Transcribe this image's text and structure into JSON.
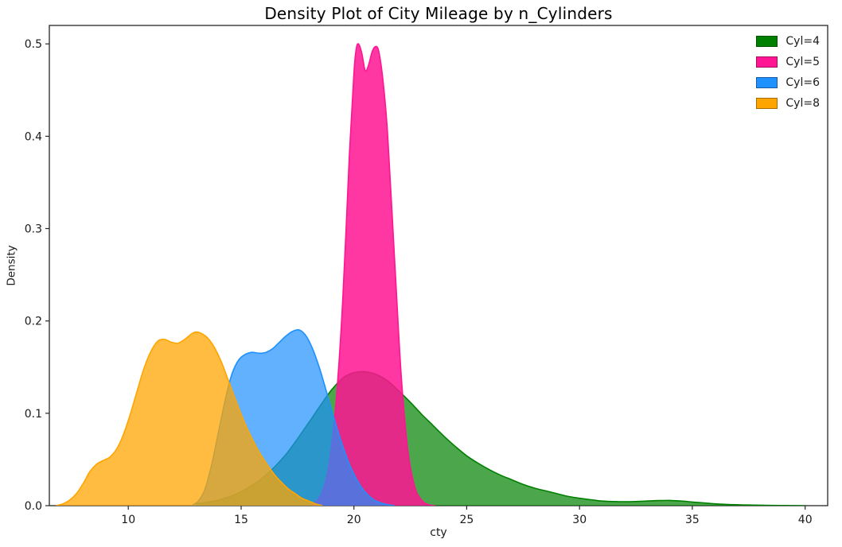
{
  "chart_data": {
    "type": "area",
    "kind": "kde-density",
    "title": "Density Plot of City Mileage by n_Cylinders",
    "xlabel": "cty",
    "ylabel": "Density",
    "xlim": [
      6.5,
      41
    ],
    "ylim": [
      0,
      0.52
    ],
    "xticks": [
      10,
      15,
      20,
      25,
      30,
      35,
      40
    ],
    "xtick_labels": [
      "10",
      "15",
      "20",
      "25",
      "30",
      "35",
      "40"
    ],
    "yticks": [
      0,
      0.1,
      0.2,
      0.3,
      0.4,
      0.5
    ],
    "ytick_labels": [
      "0.0",
      "0.1",
      "0.2",
      "0.3",
      "0.4",
      "0.5"
    ],
    "grid": false,
    "legend_position": "upper-right",
    "frame_color": "#262626",
    "series": [
      {
        "name": "Cyl=4",
        "color": "#008000",
        "fill_alpha": 0.7,
        "points": [
          [
            13,
            0.002
          ],
          [
            14,
            0.006
          ],
          [
            15,
            0.015
          ],
          [
            16,
            0.031
          ],
          [
            17,
            0.056
          ],
          [
            18,
            0.09
          ],
          [
            18.5,
            0.108
          ],
          [
            19,
            0.125
          ],
          [
            19.5,
            0.138
          ],
          [
            20,
            0.144
          ],
          [
            20.5,
            0.145
          ],
          [
            21,
            0.142
          ],
          [
            21.5,
            0.135
          ],
          [
            22,
            0.124
          ],
          [
            22.5,
            0.112
          ],
          [
            23,
            0.099
          ],
          [
            23.5,
            0.087
          ],
          [
            24,
            0.075
          ],
          [
            24.5,
            0.064
          ],
          [
            25,
            0.054
          ],
          [
            25.5,
            0.046
          ],
          [
            26,
            0.039
          ],
          [
            26.5,
            0.033
          ],
          [
            27,
            0.028
          ],
          [
            27.5,
            0.023
          ],
          [
            28,
            0.019
          ],
          [
            28.5,
            0.016
          ],
          [
            29,
            0.013
          ],
          [
            29.5,
            0.01
          ],
          [
            30,
            0.008
          ],
          [
            30.5,
            0.0065
          ],
          [
            31,
            0.005
          ],
          [
            31.5,
            0.0045
          ],
          [
            32,
            0.0042
          ],
          [
            32.5,
            0.0045
          ],
          [
            33,
            0.005
          ],
          [
            33.5,
            0.0055
          ],
          [
            34,
            0.0057
          ],
          [
            34.5,
            0.005
          ],
          [
            35,
            0.004
          ],
          [
            35.5,
            0.003
          ],
          [
            36,
            0.002
          ],
          [
            36.5,
            0.0014
          ],
          [
            37,
            0.001
          ],
          [
            37.5,
            0.0007
          ],
          [
            38,
            0.0005
          ],
          [
            38.5,
            0.0003
          ],
          [
            39,
            0.0002
          ],
          [
            39.5,
            0.0001
          ],
          [
            40,
            0
          ]
        ]
      },
      {
        "name": "Cyl=5",
        "color": "#ff1493",
        "fill_alpha": 0.85,
        "points": [
          [
            18,
            0
          ],
          [
            18.3,
            0.004
          ],
          [
            18.6,
            0.015
          ],
          [
            18.9,
            0.045
          ],
          [
            19.2,
            0.11
          ],
          [
            19.5,
            0.22
          ],
          [
            19.8,
            0.38
          ],
          [
            20,
            0.468
          ],
          [
            20.1,
            0.494
          ],
          [
            20.2,
            0.5
          ],
          [
            20.35,
            0.49
          ],
          [
            20.5,
            0.471
          ],
          [
            20.65,
            0.477
          ],
          [
            20.8,
            0.491
          ],
          [
            20.95,
            0.497
          ],
          [
            21.1,
            0.492
          ],
          [
            21.3,
            0.458
          ],
          [
            21.5,
            0.4
          ],
          [
            21.8,
            0.268
          ],
          [
            22.1,
            0.14
          ],
          [
            22.4,
            0.058
          ],
          [
            22.7,
            0.02
          ],
          [
            23,
            0.006
          ],
          [
            23.3,
            0.001
          ],
          [
            23.6,
            0
          ]
        ]
      },
      {
        "name": "Cyl=6",
        "color": "#1e90ff",
        "fill_alpha": 0.7,
        "points": [
          [
            12.8,
            0
          ],
          [
            13.1,
            0.005
          ],
          [
            13.4,
            0.018
          ],
          [
            13.7,
            0.045
          ],
          [
            14,
            0.08
          ],
          [
            14.3,
            0.115
          ],
          [
            14.6,
            0.143
          ],
          [
            14.9,
            0.158
          ],
          [
            15.2,
            0.164
          ],
          [
            15.5,
            0.166
          ],
          [
            15.8,
            0.165
          ],
          [
            16.1,
            0.166
          ],
          [
            16.4,
            0.17
          ],
          [
            16.7,
            0.177
          ],
          [
            17,
            0.184
          ],
          [
            17.3,
            0.189
          ],
          [
            17.6,
            0.19
          ],
          [
            17.9,
            0.183
          ],
          [
            18.2,
            0.168
          ],
          [
            18.5,
            0.147
          ],
          [
            18.8,
            0.122
          ],
          [
            19.1,
            0.096
          ],
          [
            19.4,
            0.072
          ],
          [
            19.7,
            0.051
          ],
          [
            20,
            0.034
          ],
          [
            20.3,
            0.021
          ],
          [
            20.6,
            0.012
          ],
          [
            20.9,
            0.006
          ],
          [
            21.2,
            0.003
          ],
          [
            21.5,
            0.001
          ],
          [
            21.8,
            0
          ]
        ]
      },
      {
        "name": "Cyl=8",
        "color": "#ffa500",
        "fill_alpha": 0.75,
        "points": [
          [
            6.8,
            0
          ],
          [
            7.1,
            0.002
          ],
          [
            7.4,
            0.006
          ],
          [
            7.7,
            0.013
          ],
          [
            8,
            0.024
          ],
          [
            8.3,
            0.037
          ],
          [
            8.6,
            0.045
          ],
          [
            8.9,
            0.049
          ],
          [
            9.2,
            0.053
          ],
          [
            9.5,
            0.062
          ],
          [
            9.8,
            0.078
          ],
          [
            10.1,
            0.1
          ],
          [
            10.4,
            0.125
          ],
          [
            10.7,
            0.149
          ],
          [
            11,
            0.167
          ],
          [
            11.3,
            0.178
          ],
          [
            11.6,
            0.18
          ],
          [
            11.9,
            0.177
          ],
          [
            12.2,
            0.176
          ],
          [
            12.5,
            0.18
          ],
          [
            12.8,
            0.186
          ],
          [
            13,
            0.188
          ],
          [
            13.2,
            0.187
          ],
          [
            13.5,
            0.182
          ],
          [
            13.8,
            0.172
          ],
          [
            14.1,
            0.157
          ],
          [
            14.4,
            0.138
          ],
          [
            14.7,
            0.118
          ],
          [
            15,
            0.099
          ],
          [
            15.3,
            0.082
          ],
          [
            15.6,
            0.067
          ],
          [
            15.9,
            0.054
          ],
          [
            16.2,
            0.043
          ],
          [
            16.5,
            0.033
          ],
          [
            16.8,
            0.025
          ],
          [
            17.1,
            0.018
          ],
          [
            17.4,
            0.013
          ],
          [
            17.7,
            0.008
          ],
          [
            18,
            0.005
          ],
          [
            18.3,
            0.002
          ],
          [
            18.6,
            0
          ]
        ]
      }
    ]
  }
}
